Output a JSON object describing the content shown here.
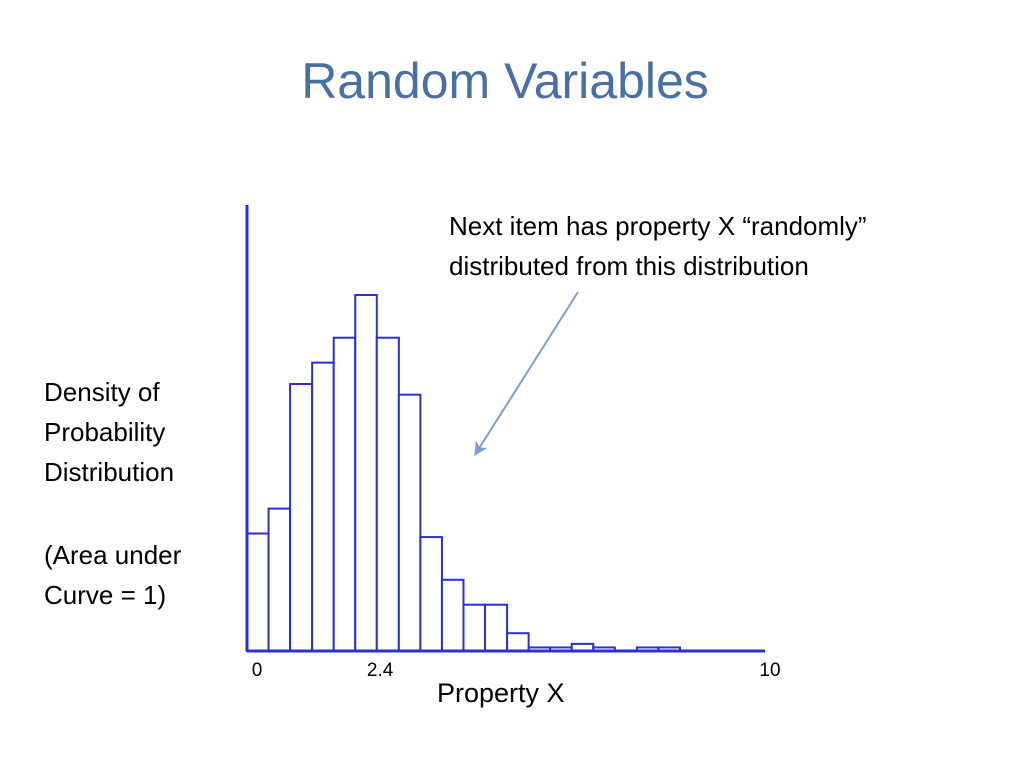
{
  "slide": {
    "title": "Random Variables",
    "ylabel_lines": [
      "Density of",
      "Probability",
      "Distribution"
    ],
    "note_lines": [
      "(Area under",
      "Curve = 1)"
    ],
    "annotation_lines": [
      "Next item has property X “randomly”",
      "distributed from this distribution"
    ]
  },
  "chart_data": {
    "type": "bar",
    "title": "",
    "xlabel": "Property X",
    "ylabel": "Density of Probability Distribution",
    "xlim": [
      0,
      10
    ],
    "ylim": [
      0,
      1
    ],
    "x_tick_labels": [
      {
        "value": 0,
        "label": "0"
      },
      {
        "value": 2.4,
        "label": "2.4"
      },
      {
        "value": 10,
        "label": "10"
      }
    ],
    "bin_edges": [
      0,
      0.42,
      0.84,
      1.27,
      1.69,
      2.11,
      2.53,
      2.96,
      3.38,
      3.8,
      4.22,
      4.64,
      5.07,
      5.49,
      5.91,
      6.33,
      6.75,
      7.17,
      7.6,
      8.02,
      8.44,
      8.86,
      9.28,
      9.71
    ],
    "values": [
      0.33,
      0.4,
      0.75,
      0.81,
      0.88,
      1.0,
      0.88,
      0.72,
      0.32,
      0.2,
      0.13,
      0.13,
      0.05,
      0.01,
      0.01,
      0.02,
      0.01,
      0.0,
      0.01,
      0.01,
      0.0,
      0.0,
      0.0
    ],
    "bar_color": "#2a2fd6",
    "axis_color": "#2a2fd6",
    "grid": false
  }
}
